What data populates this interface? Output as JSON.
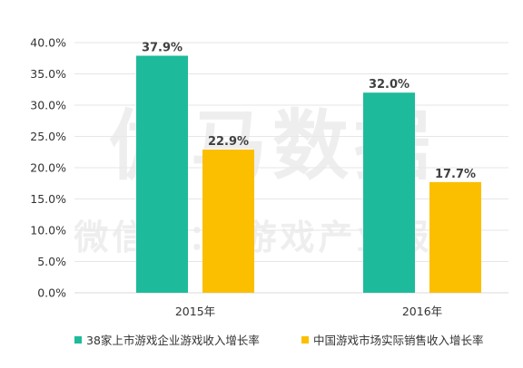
{
  "watermark": {
    "line1": "伽马数据",
    "line2": "微信号： 游戏产业报告"
  },
  "colors": {
    "series1": "#1dbb9b",
    "series2": "#fbbf00",
    "grid": "#e6e6e6",
    "axis": "#d9d9d9"
  },
  "chart_data": {
    "type": "bar",
    "categories": [
      "2015年",
      "2016年"
    ],
    "series": [
      {
        "name": "38家上市游戏企业游戏收入增长率",
        "values": [
          37.9,
          32.0
        ],
        "labels": [
          "37.9%",
          "32.0%"
        ]
      },
      {
        "name": "中国游戏市场实际销售收入增长率",
        "values": [
          22.9,
          17.7
        ],
        "labels": [
          "22.9%",
          "17.7%"
        ]
      }
    ],
    "yticks": [
      "0.0%",
      "5.0%",
      "10.0%",
      "15.0%",
      "20.0%",
      "25.0%",
      "30.0%",
      "35.0%",
      "40.0%"
    ],
    "ylim": [
      0,
      40
    ],
    "grid": true,
    "legend": "bottom"
  }
}
